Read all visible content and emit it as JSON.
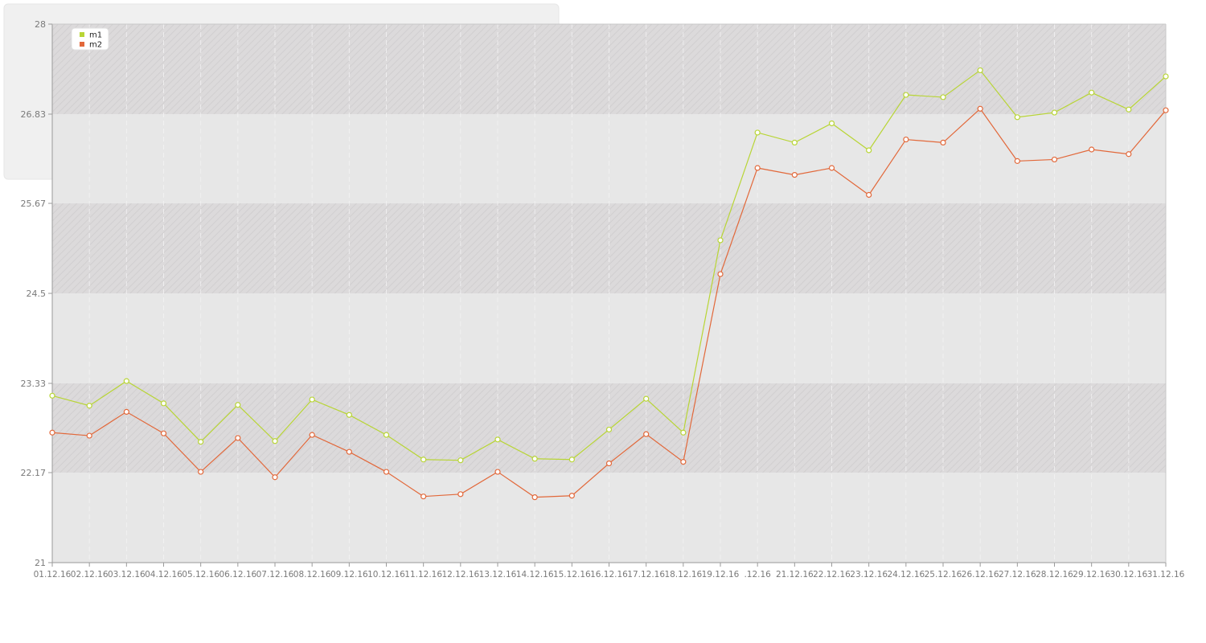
{
  "chart_data": {
    "type": "line",
    "x": [
      "01.12.16",
      "02.12.16",
      "03.12.16",
      "04.12.16",
      "05.12.16",
      "06.12.16",
      "07.12.16",
      "08.12.16",
      "09.12.16",
      "10.12.16",
      "11.12.16",
      "12.12.16",
      "13.12.16",
      "14.12.16",
      "15.12.16",
      "16.12.16",
      "17.12.16",
      "18.12.16",
      "19.12.16",
      ".12.16",
      "21.12.16",
      "22.12.16",
      "23.12.16",
      "24.12.16",
      "25.12.16",
      "26.12.16",
      "27.12.16",
      "28.12.16",
      "29.12.16",
      "30.12.16",
      "31.12.16"
    ],
    "y_ticks": [
      "21",
      "22.17",
      "23.33",
      "24.5",
      "25.67",
      "26.83",
      "28"
    ],
    "ylim": [
      21,
      28
    ],
    "series": [
      {
        "name": "m1",
        "color": "#b8d535",
        "values": [
          23.17,
          23.04,
          23.36,
          23.07,
          22.57,
          23.05,
          22.58,
          23.12,
          22.92,
          22.66,
          22.34,
          22.33,
          22.6,
          22.35,
          22.34,
          22.73,
          23.13,
          22.69,
          25.19,
          26.59,
          26.46,
          26.71,
          26.36,
          27.08,
          27.05,
          27.4,
          26.79,
          26.85,
          27.11,
          26.89,
          27.32
        ]
      },
      {
        "name": "m2",
        "color": "#e2683a",
        "values": [
          22.69,
          22.65,
          22.96,
          22.68,
          22.18,
          22.62,
          22.11,
          22.66,
          22.44,
          22.18,
          21.86,
          21.89,
          22.18,
          21.85,
          21.87,
          22.29,
          22.67,
          22.31,
          24.75,
          26.13,
          26.04,
          26.13,
          25.78,
          26.5,
          26.46,
          26.9,
          26.22,
          26.24,
          26.37,
          26.31,
          26.88
        ]
      }
    ],
    "grid": true,
    "legend_position": "top-left"
  }
}
